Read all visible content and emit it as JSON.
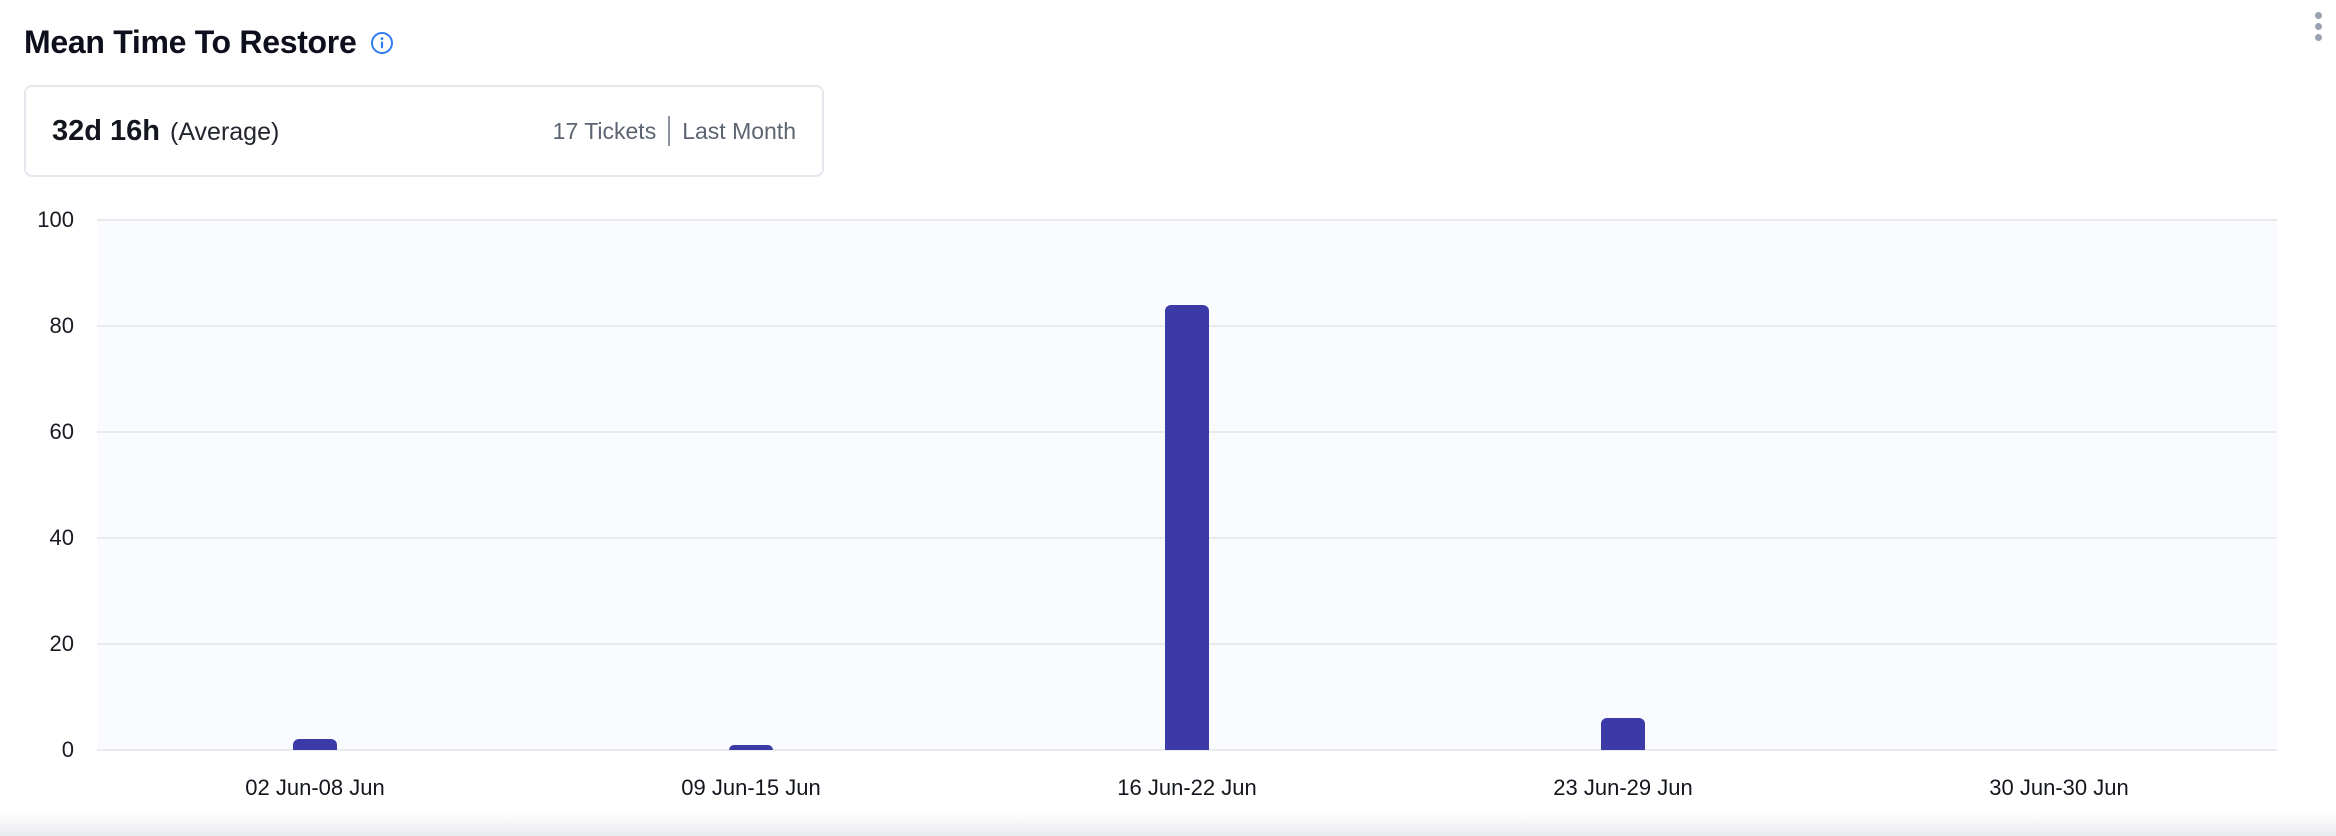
{
  "widget": {
    "title": "Mean Time To Restore"
  },
  "summary": {
    "value": "32d 16h",
    "qualifier": "(Average)",
    "tickets": "17 Tickets",
    "period": "Last Month"
  },
  "chart_data": {
    "type": "bar",
    "title": "Mean Time To Restore",
    "categories": [
      "02 Jun-08 Jun",
      "09 Jun-15 Jun",
      "16 Jun-22 Jun",
      "23 Jun-29 Jun",
      "30 Jun-30 Jun"
    ],
    "values": [
      2,
      1,
      84,
      6,
      0
    ],
    "xlabel": "",
    "ylabel": "",
    "ylim": [
      0,
      100
    ],
    "yticks": [
      0,
      20,
      40,
      60,
      80,
      100
    ],
    "grid": true,
    "legend": "none",
    "bar_color": "#3b3aa6",
    "plot_background": "#fafbfe",
    "gridline_color": "#e9eaec"
  },
  "colors": {
    "info_blue": "#2e7cf5",
    "muted_text": "#5c6472",
    "divider": "#8b93a3",
    "menu_dots": "#9aa2b1"
  }
}
